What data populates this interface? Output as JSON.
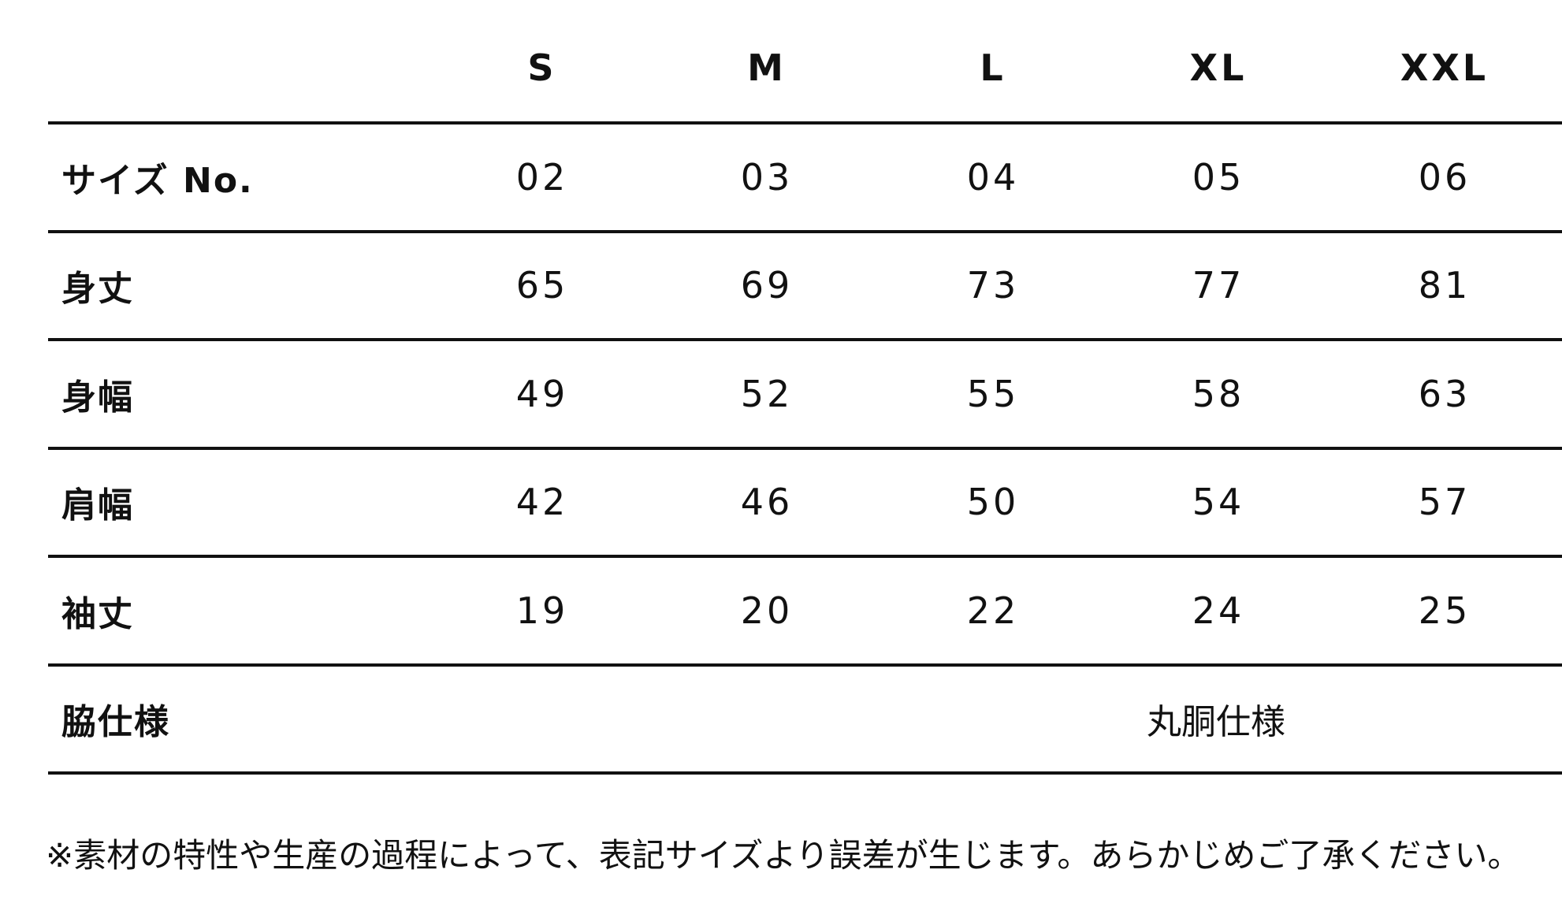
{
  "table": {
    "header": [
      "S",
      "M",
      "L",
      "XL",
      "XXL"
    ],
    "rows": [
      [
        "サイズ No.",
        "02",
        "03",
        "04",
        "05",
        "06"
      ],
      [
        "身丈",
        "65",
        "69",
        "73",
        "77",
        "81"
      ],
      [
        "身幅",
        "49",
        "52",
        "55",
        "58",
        "63"
      ],
      [
        "肩幅",
        "42",
        "46",
        "50",
        "54",
        "57"
      ],
      [
        "袖丈",
        "19",
        "20",
        "22",
        "24",
        "25"
      ],
      [
        "脇仕様",
        "丸胴仕様"
      ]
    ]
  },
  "note": "※素材の特性や生産の過程によって、表記サイズより誤差が生じます。あらかじめご了承ください。"
}
